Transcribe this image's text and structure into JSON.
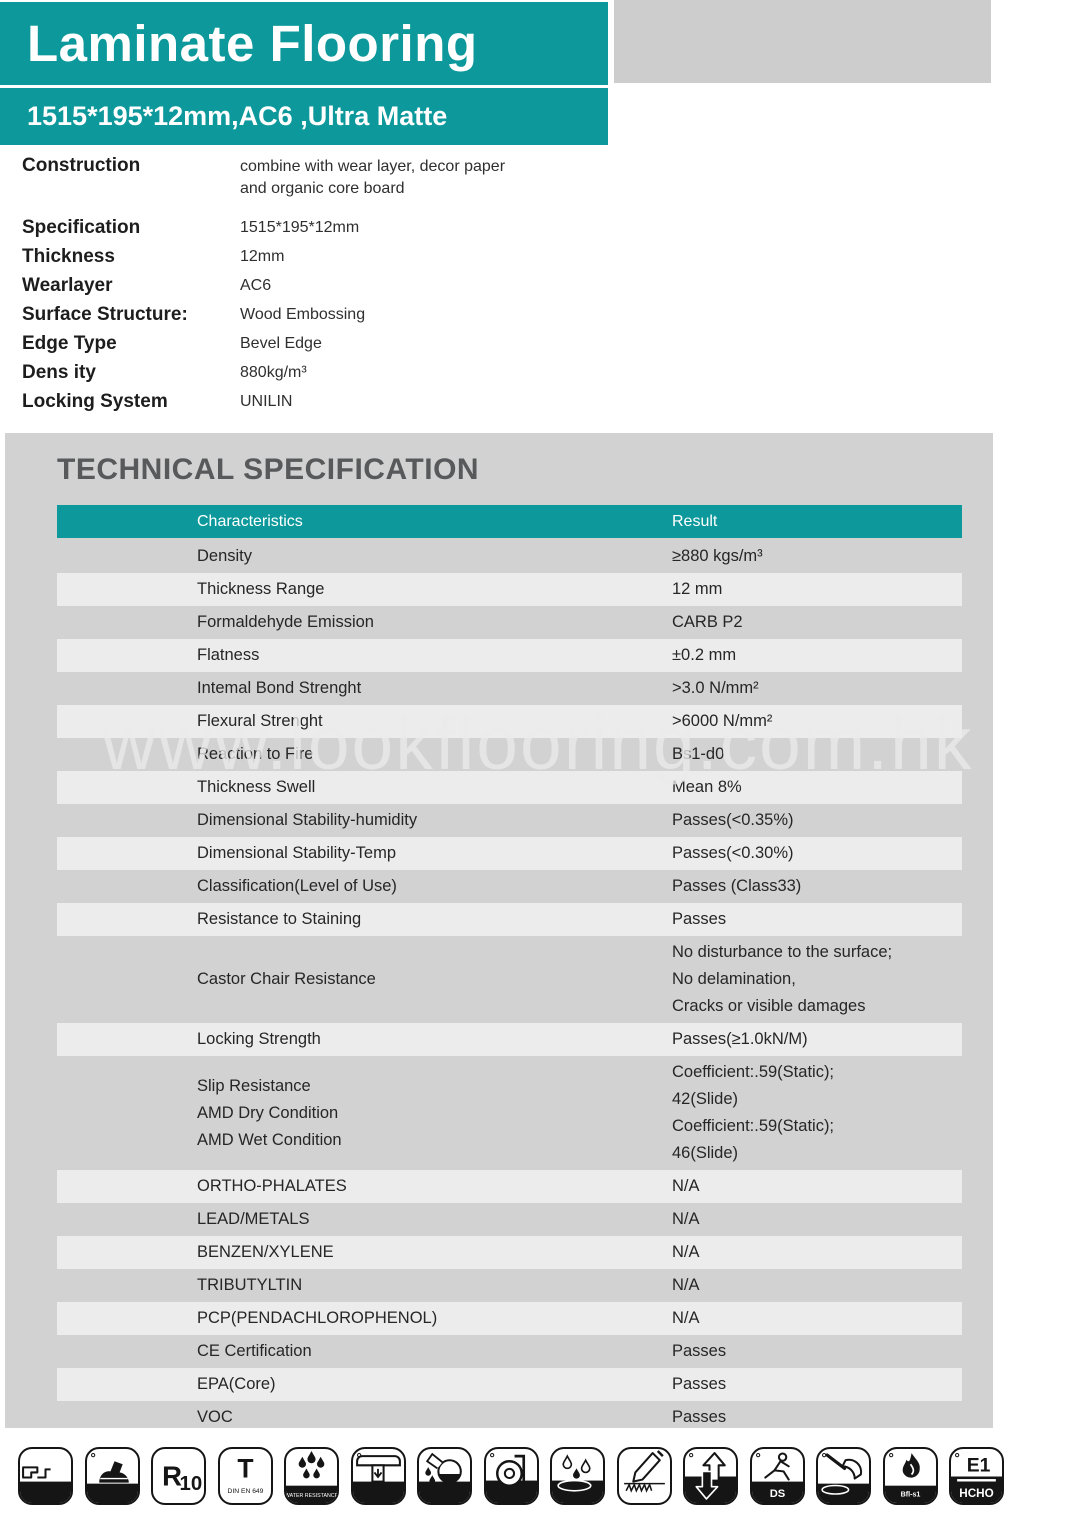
{
  "colors": {
    "teal": "#0d999b",
    "top_gray_box": "#cdcdcd",
    "section_bg": "#d2d2d2",
    "row_light": "#ececec",
    "heading_gray": "#58595b",
    "icon_black": "#151515"
  },
  "header": {
    "title": "Laminate Flooring",
    "subtitle": "1515*195*12mm,AC6 ,Ultra Matte"
  },
  "product_specs": [
    {
      "label": "Construction",
      "value": "combine with wear layer, decor paper\nand organic core board"
    },
    {
      "label": "Specification",
      "value": "1515*195*12mm"
    },
    {
      "label": "Thickness",
      "value": "12mm"
    },
    {
      "label": "Wearlayer",
      "value": "AC6"
    },
    {
      "label": "Surface Structure:",
      "value": "Wood Embossing"
    },
    {
      "label": "Edge Type",
      "value": "Bevel Edge"
    },
    {
      "label": "Dens ity",
      "value": "880kg/m³"
    },
    {
      "label": "Locking System",
      "value": "UNILIN"
    }
  ],
  "technical": {
    "heading": "TECHNICAL SPECIFICATION",
    "columns": {
      "characteristics": "Characteristics",
      "result": "Result"
    },
    "rows": [
      {
        "characteristic": "Density",
        "result": "≥880 kgs/m³",
        "shade": "dark"
      },
      {
        "characteristic": "Thickness Range",
        "result": "12 mm",
        "shade": "light"
      },
      {
        "characteristic": "Formaldehyde Emission",
        "result": "CARB   P2",
        "shade": "dark"
      },
      {
        "characteristic": "Flatness",
        "result": "±0.2 mm",
        "shade": "light"
      },
      {
        "characteristic": "Intemal Bond Strenght",
        "result": ">3.0  N/mm²",
        "shade": "dark"
      },
      {
        "characteristic": "Flexural Strenght",
        "result": ">6000  N/mm²",
        "shade": "light"
      },
      {
        "characteristic": "Reaction to Fire",
        "result": "Bs1-d0",
        "shade": "dark"
      },
      {
        "characteristic": "Thickness Swell",
        "result": "Mean 8%",
        "shade": "light"
      },
      {
        "characteristic": "Dimensional Stability-humidity",
        "result": "Passes(<0.35%)",
        "shade": "dark"
      },
      {
        "characteristic": "Dimensional Stability-Temp",
        "result": "Passes(<0.30%)",
        "shade": "light"
      },
      {
        "characteristic": "Classification(Level of Use)",
        "result": "Passes  (Class33)",
        "shade": "dark"
      },
      {
        "characteristic": "Resistance to Staining",
        "result": "Passes",
        "shade": "light"
      },
      {
        "characteristic": "Castor Chair Resistance",
        "result": "No disturbance to the surface;\nNo delamination,\nCracks or visible damages",
        "shade": "dark"
      },
      {
        "characteristic": "Locking Strength",
        "result": "Passes(≥1.0kN/M)",
        "shade": "light"
      },
      {
        "characteristic": "Slip Resistance\nAMD Dry Condition\nAMD Wet Condition",
        "result": "Coefficient:.59(Static);\n42(Slide)\nCoefficient:.59(Static);\n46(Slide)",
        "shade": "dark"
      },
      {
        "characteristic": "ORTHO-PHALATES",
        "result": "N/A",
        "shade": "light"
      },
      {
        "characteristic": "LEAD/METALS",
        "result": "N/A",
        "shade": "dark"
      },
      {
        "characteristic": "BENZEN/XYLENE",
        "result": "N/A",
        "shade": "light"
      },
      {
        "characteristic": "TRIBUTYLTIN",
        "result": "N/A",
        "shade": "dark"
      },
      {
        "characteristic": "PCP(PENDACHLOROPHENOL)",
        "result": "N/A",
        "shade": "light"
      },
      {
        "characteristic": "CE Certification",
        "result": "Passes",
        "shade": "dark"
      },
      {
        "characteristic": "EPA(Core)",
        "result": "Passes",
        "shade": "light"
      },
      {
        "characteristic": "VOC",
        "result": "Passes",
        "shade": "dark"
      }
    ]
  },
  "watermark": "www.lookflooring.com.hk",
  "footer_icons": [
    {
      "name": "click-lock-icon"
    },
    {
      "name": "footstep-icon"
    },
    {
      "name": "r10-slip-rating-icon",
      "text": "R10"
    },
    {
      "name": "din-en-649-icon",
      "text": "T",
      "subtext": "DIN EN 649"
    },
    {
      "name": "water-resistance-icon",
      "subtext": "WATER RESISTANCE"
    },
    {
      "name": "furniture-leg-icon"
    },
    {
      "name": "chemical-resistance-icon"
    },
    {
      "name": "castor-wheel-icon"
    },
    {
      "name": "moisture-spill-icon"
    },
    {
      "name": "scratch-resistance-icon"
    },
    {
      "name": "dimensional-stability-icon"
    },
    {
      "name": "slip-resistance-ds-icon",
      "subtext": "DS"
    },
    {
      "name": "plunger-spill-icon"
    },
    {
      "name": "fire-rating-icon",
      "subtext": "Bfl-s1"
    },
    {
      "name": "e1-formaldehyde-icon",
      "text": "E1",
      "subtext": "HCHO"
    }
  ]
}
